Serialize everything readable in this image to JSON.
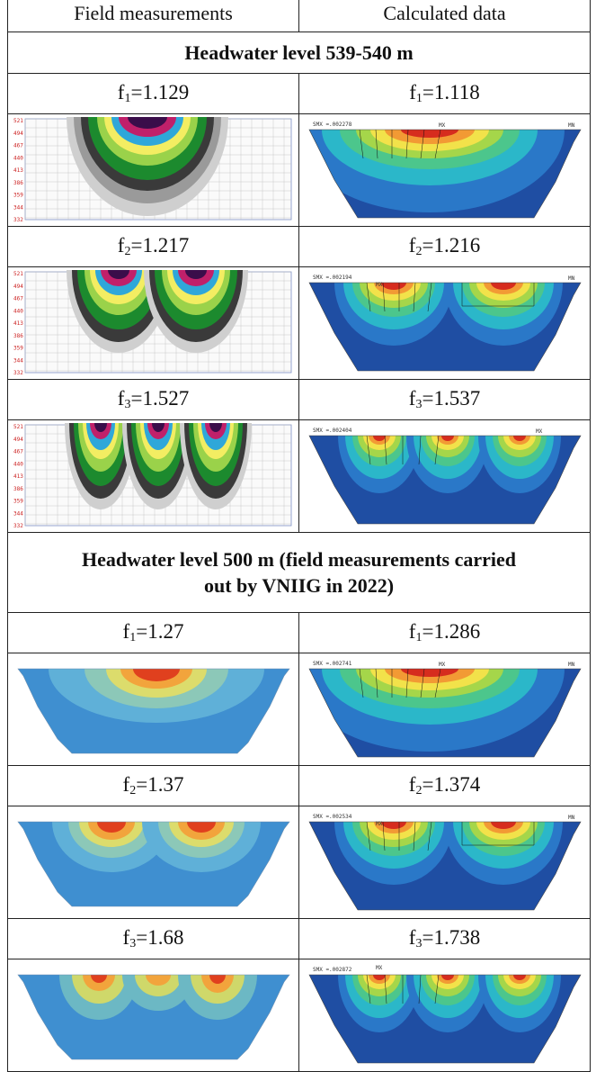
{
  "header": {
    "col_left": "Field measurements",
    "col_right": "Calculated data"
  },
  "section1": {
    "title": "Headwater level 539-540 m",
    "rows": [
      {
        "left_sym": "f",
        "left_sub": "1",
        "left_val": "=1.129",
        "right_sym": "f",
        "right_sub": "1",
        "right_val": "=1.118",
        "calc_label": "SMX =.002278"
      },
      {
        "left_sym": "f",
        "left_sub": "2",
        "left_val": "=1.217",
        "right_sym": "f",
        "right_sub": "2",
        "right_val": "=1.216",
        "calc_label": "SMX =.002194"
      },
      {
        "left_sym": "f",
        "left_sub": "3",
        "left_val": "=1.527",
        "right_sym": "f",
        "right_sub": "3",
        "right_val": "=1.537",
        "calc_label": "SMX =.002404"
      }
    ],
    "field_y_ticks": [
      "521",
      "494",
      "467",
      "440",
      "413",
      "386",
      "359",
      "344",
      "332"
    ]
  },
  "section2": {
    "title_line1": "Headwater level 500 m (field measurements carried",
    "title_line2": "out by VNIIG in 2022)",
    "rows": [
      {
        "left_sym": "f",
        "left_sub": "1",
        "left_val": "=1.27",
        "right_sym": "f",
        "right_sub": "1",
        "right_val": "=1.286",
        "calc_label": "SMX =.002741"
      },
      {
        "left_sym": "f",
        "left_sub": "2",
        "left_val": "=1.37",
        "right_sym": "f",
        "right_sub": "2",
        "right_val": "=1.374",
        "calc_label": "SMX =.002534"
      },
      {
        "left_sym": "f",
        "left_sub": "3",
        "left_val": "=1.68",
        "right_sym": "f",
        "right_sub": "3",
        "right_val": "=1.738",
        "calc_label": "SMX =.002872"
      }
    ]
  },
  "marks": {
    "mx": "MX",
    "mn": "MN"
  }
}
